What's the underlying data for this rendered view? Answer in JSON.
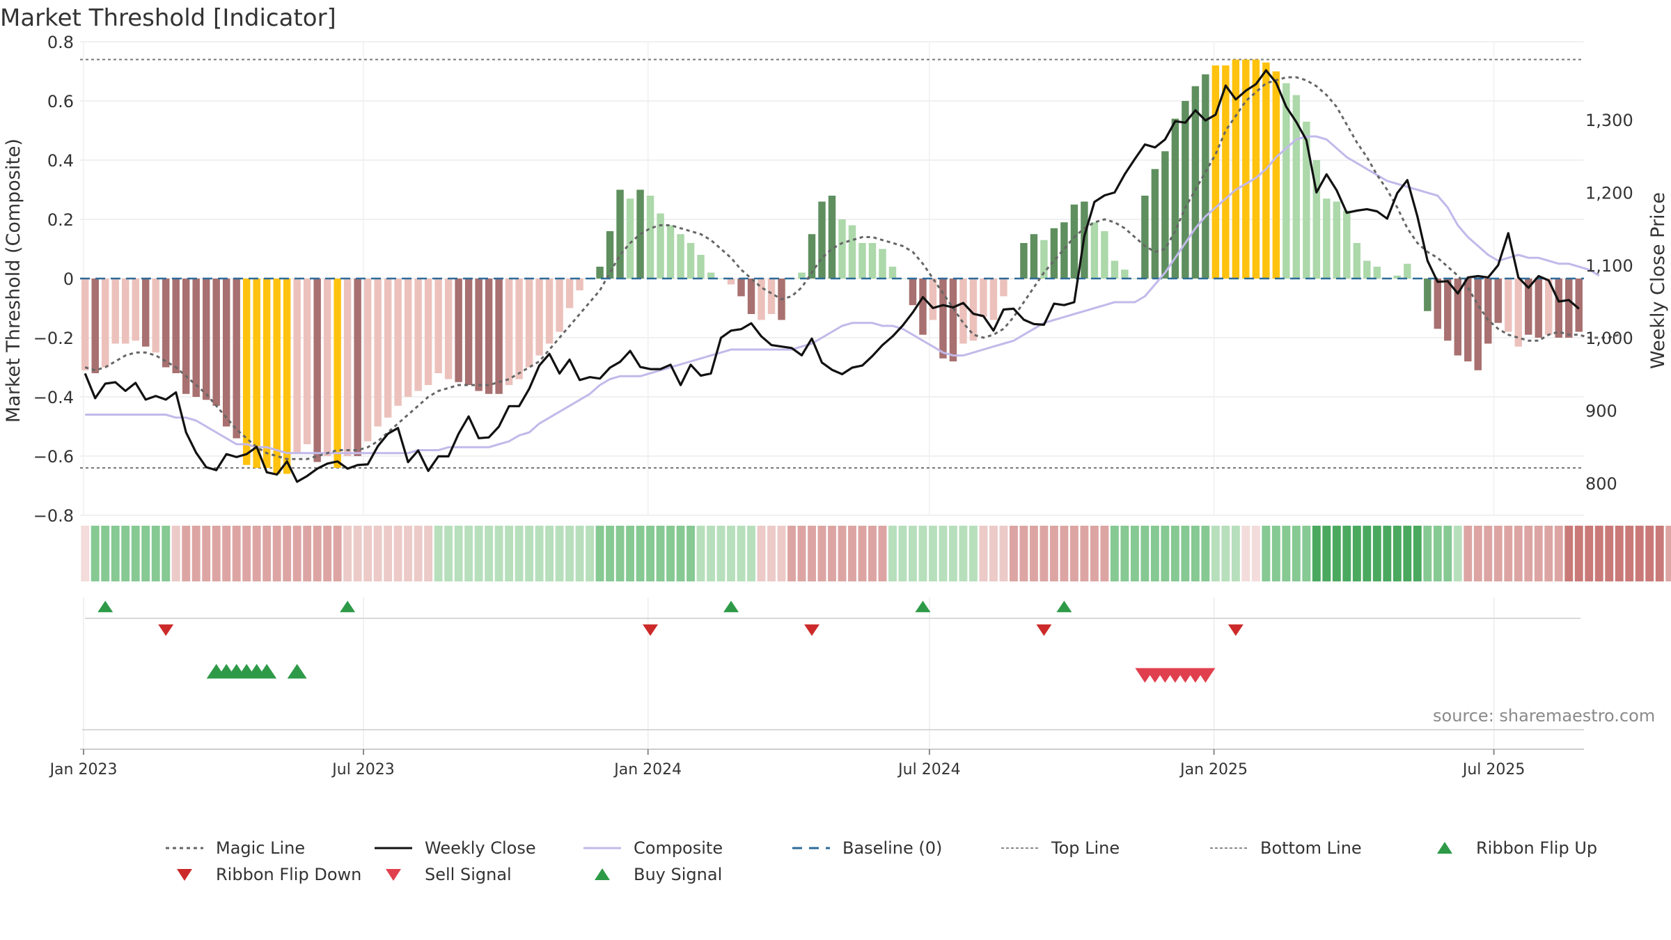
{
  "title": "Market Threshold [Indicator]",
  "source": "source: sharemaestro.com",
  "colors": {
    "magic": "#666666",
    "close": "#111111",
    "composite": "#c2b9ea",
    "baseline": "#2d6b99",
    "threshold": "#777777",
    "bull_strong": "#5f8f5f",
    "bull_weak": "#acd8aa",
    "bear_strong": "#a87070",
    "bear_weak": "#ecc1bc",
    "extreme": "#ffc20e",
    "flip_up": "#2e9a48",
    "flip_down": "#cc2a2a",
    "sell": "#e0404d",
    "buy": "#2e9a48"
  },
  "legend": [
    {
      "label": "Magic Line",
      "sym": "dotted",
      "color": "#666666"
    },
    {
      "label": "Weekly Close",
      "sym": "solid",
      "color": "#111111"
    },
    {
      "label": "Composite",
      "sym": "solid",
      "color": "#c2b9ea"
    },
    {
      "label": "Baseline (0)",
      "sym": "dashed",
      "color": "#2d6b99"
    },
    {
      "label": "Top Line",
      "sym": "dotted-thin",
      "color": "#888888"
    },
    {
      "label": "Bottom Line",
      "sym": "dotted-thin",
      "color": "#888888"
    },
    {
      "label": "Ribbon Flip Up",
      "sym": "tri-up",
      "color": "#2e9a48"
    },
    {
      "label": "Ribbon Flip Down",
      "sym": "tri-down",
      "color": "#cc2a2a"
    },
    {
      "label": "Sell Signal",
      "sym": "tri-down",
      "color": "#e0404d"
    },
    {
      "label": "Buy Signal",
      "sym": "tri-up",
      "color": "#2e9a48"
    }
  ],
  "chart_data": {
    "type": "bar",
    "ylabel_left": "Market Threshold (Composite)",
    "ylabel_right": "Weekly Close Price",
    "ylim_left": [
      -0.8,
      0.8
    ],
    "yticks_left": [
      "0.8",
      "0.6",
      "0.4",
      "0.2",
      "0",
      "−0.2",
      "−0.4",
      "−0.6",
      "−0.8"
    ],
    "ylim_right": [
      800,
      1300
    ],
    "yticks_right": [
      "1,300",
      "1,200",
      "1,100",
      "1,000",
      "900",
      "800"
    ],
    "xticks": [
      "Jan 2023",
      "Jul 2023",
      "Jan 2024",
      "Jul 2024",
      "Jan 2025",
      "Jul 2025"
    ],
    "x_start": "2023-01-02",
    "x_end": "2025-08-25",
    "grid": true,
    "top_line": 0.74,
    "bottom_line": -0.64,
    "baseline": 0,
    "bars": [
      -0.31,
      -0.32,
      -0.3,
      -0.22,
      -0.22,
      -0.21,
      -0.23,
      -0.25,
      -0.3,
      -0.32,
      -0.39,
      -0.4,
      -0.41,
      -0.43,
      -0.5,
      -0.54,
      -0.63,
      -0.64,
      -0.64,
      -0.66,
      -0.66,
      -0.59,
      -0.56,
      -0.62,
      -0.6,
      -0.64,
      -0.6,
      -0.6,
      -0.55,
      -0.5,
      -0.47,
      -0.43,
      -0.4,
      -0.38,
      -0.36,
      -0.32,
      -0.34,
      -0.35,
      -0.36,
      -0.38,
      -0.39,
      -0.39,
      -0.36,
      -0.34,
      -0.3,
      -0.26,
      -0.22,
      -0.18,
      -0.1,
      -0.04,
      0,
      0.04,
      0.16,
      0.3,
      0.27,
      0.3,
      0.28,
      0.22,
      0.18,
      0.15,
      0.12,
      0.08,
      0.02,
      0,
      -0.02,
      -0.06,
      -0.12,
      -0.14,
      -0.12,
      -0.14,
      0,
      0.02,
      0.15,
      0.26,
      0.28,
      0.2,
      0.18,
      0.12,
      0.12,
      0.1,
      0.04,
      0,
      -0.09,
      -0.19,
      -0.14,
      -0.27,
      -0.28,
      -0.22,
      -0.21,
      -0.13,
      -0.14,
      -0.06,
      0,
      0.12,
      0.15,
      0.13,
      0.17,
      0.19,
      0.25,
      0.26,
      0.19,
      0.16,
      0.06,
      0.03,
      0,
      0.28,
      0.37,
      0.43,
      0.54,
      0.6,
      0.65,
      0.69,
      0.72,
      0.72,
      0.74,
      0.74,
      0.74,
      0.73,
      0.7,
      0.66,
      0.62,
      0.53,
      0.4,
      0.27,
      0.26,
      0.23,
      0.12,
      0.06,
      0.04,
      0,
      0.01,
      0.05,
      0,
      -0.11,
      -0.17,
      -0.21,
      -0.26,
      -0.28,
      -0.31,
      -0.22,
      -0.15,
      -0.18,
      -0.23,
      -0.19,
      -0.2,
      -0.19,
      -0.2,
      -0.2,
      -0.18
    ],
    "bar_styles": [
      "bw",
      "bs",
      "bw",
      "bw",
      "bw",
      "bw",
      "bs",
      "bw",
      "bs",
      "bs",
      "bs",
      "bs",
      "bs",
      "bs",
      "bs",
      "bs",
      "ex",
      "ex",
      "ex",
      "ex",
      "ex",
      "bw",
      "bw",
      "bs",
      "bw",
      "ex",
      "bw",
      "bs",
      "bw",
      "bw",
      "bw",
      "bw",
      "bw",
      "bw",
      "bw",
      "bw",
      "bw",
      "bs",
      "bs",
      "bs",
      "bs",
      "bs",
      "bw",
      "bw",
      "bw",
      "bw",
      "bw",
      "bw",
      "bw",
      "bw",
      "bw",
      "us",
      "us",
      "us",
      "uw",
      "us",
      "uw",
      "uw",
      "uw",
      "uw",
      "uw",
      "uw",
      "uw",
      "uw",
      "bw",
      "bs",
      "bs",
      "bw",
      "bw",
      "bs",
      "uw",
      "uw",
      "us",
      "us",
      "us",
      "uw",
      "uw",
      "uw",
      "uw",
      "uw",
      "uw",
      "uw",
      "bs",
      "bs",
      "bw",
      "bs",
      "bs",
      "bw",
      "bw",
      "bw",
      "bw",
      "bw",
      "bw",
      "us",
      "us",
      "uw",
      "us",
      "us",
      "us",
      "us",
      "uw",
      "uw",
      "uw",
      "uw",
      "uw",
      "us",
      "us",
      "us",
      "us",
      "us",
      "us",
      "us",
      "ex",
      "ex",
      "ex",
      "ex",
      "ex",
      "ex",
      "ex",
      "uw",
      "uw",
      "uw",
      "uw",
      "uw",
      "uw",
      "uw",
      "uw",
      "uw",
      "uw",
      "uw",
      "uw",
      "uw",
      "uw",
      "us",
      "bs",
      "bs",
      "bs",
      "bs",
      "bs",
      "bs",
      "bs",
      "bw",
      "bw",
      "bs",
      "bs",
      "bw",
      "bs",
      "bs",
      "bs",
      "bs",
      "bw"
    ],
    "composite": [
      -0.46,
      -0.46,
      -0.46,
      -0.46,
      -0.46,
      -0.46,
      -0.46,
      -0.46,
      -0.46,
      -0.47,
      -0.47,
      -0.48,
      -0.5,
      -0.52,
      -0.54,
      -0.56,
      -0.56,
      -0.57,
      -0.57,
      -0.58,
      -0.59,
      -0.59,
      -0.59,
      -0.59,
      -0.59,
      -0.59,
      -0.59,
      -0.59,
      -0.59,
      -0.59,
      -0.59,
      -0.59,
      -0.59,
      -0.58,
      -0.58,
      -0.58,
      -0.57,
      -0.57,
      -0.57,
      -0.57,
      -0.57,
      -0.56,
      -0.55,
      -0.53,
      -0.52,
      -0.49,
      -0.47,
      -0.45,
      -0.43,
      -0.41,
      -0.39,
      -0.36,
      -0.34,
      -0.33,
      -0.33,
      -0.33,
      -0.32,
      -0.31,
      -0.3,
      -0.29,
      -0.28,
      -0.27,
      -0.26,
      -0.25,
      -0.24,
      -0.24,
      -0.24,
      -0.24,
      -0.24,
      -0.24,
      -0.24,
      -0.23,
      -0.22,
      -0.2,
      -0.18,
      -0.16,
      -0.15,
      -0.15,
      -0.15,
      -0.16,
      -0.16,
      -0.17,
      -0.19,
      -0.21,
      -0.23,
      -0.25,
      -0.26,
      -0.26,
      -0.25,
      -0.24,
      -0.23,
      -0.22,
      -0.21,
      -0.19,
      -0.17,
      -0.15,
      -0.14,
      -0.13,
      -0.12,
      -0.11,
      -0.1,
      -0.09,
      -0.08,
      -0.08,
      -0.08,
      -0.06,
      -0.02,
      0.02,
      0.07,
      0.12,
      0.17,
      0.21,
      0.24,
      0.27,
      0.3,
      0.32,
      0.34,
      0.37,
      0.41,
      0.44,
      0.47,
      0.48,
      0.48,
      0.47,
      0.44,
      0.41,
      0.39,
      0.37,
      0.35,
      0.33,
      0.32,
      0.31,
      0.3,
      0.29,
      0.28,
      0.24,
      0.18,
      0.14,
      0.11,
      0.08,
      0.06,
      0.07,
      0.08,
      0.07,
      0.07,
      0.06,
      0.05,
      0.05,
      0.04,
      0.03,
      0.01
    ],
    "magic": [
      -0.3,
      -0.31,
      -0.3,
      -0.28,
      -0.26,
      -0.25,
      -0.25,
      -0.26,
      -0.28,
      -0.3,
      -0.33,
      -0.36,
      -0.39,
      -0.43,
      -0.47,
      -0.51,
      -0.54,
      -0.57,
      -0.59,
      -0.6,
      -0.61,
      -0.61,
      -0.61,
      -0.6,
      -0.59,
      -0.58,
      -0.58,
      -0.58,
      -0.57,
      -0.55,
      -0.52,
      -0.49,
      -0.46,
      -0.43,
      -0.4,
      -0.38,
      -0.37,
      -0.36,
      -0.36,
      -0.36,
      -0.36,
      -0.35,
      -0.34,
      -0.32,
      -0.3,
      -0.28,
      -0.24,
      -0.2,
      -0.16,
      -0.12,
      -0.08,
      -0.04,
      0.02,
      0.08,
      0.12,
      0.15,
      0.17,
      0.18,
      0.18,
      0.17,
      0.16,
      0.15,
      0.13,
      0.1,
      0.07,
      0.03,
      0,
      -0.03,
      -0.05,
      -0.07,
      -0.06,
      -0.03,
      0.02,
      0.07,
      0.1,
      0.12,
      0.13,
      0.14,
      0.14,
      0.13,
      0.12,
      0.11,
      0.09,
      0.05,
      0,
      -0.05,
      -0.1,
      -0.15,
      -0.19,
      -0.2,
      -0.19,
      -0.17,
      -0.13,
      -0.08,
      -0.03,
      0.02,
      0.06,
      0.1,
      0.14,
      0.17,
      0.19,
      0.2,
      0.19,
      0.17,
      0.14,
      0.11,
      0.09,
      0.1,
      0.16,
      0.24,
      0.3,
      0.36,
      0.42,
      0.5,
      0.55,
      0.6,
      0.63,
      0.66,
      0.67,
      0.68,
      0.68,
      0.67,
      0.65,
      0.62,
      0.58,
      0.52,
      0.46,
      0.41,
      0.35,
      0.3,
      0.24,
      0.17,
      0.12,
      0.09,
      0.07,
      0.04,
      0.01,
      -0.03,
      -0.09,
      -0.14,
      -0.17,
      -0.19,
      -0.2,
      -0.21,
      -0.21,
      -0.19,
      -0.18,
      -0.19,
      -0.19,
      -0.2,
      -0.2,
      -0.2,
      -0.19
    ],
    "weekly_close": [
      951,
      917,
      937,
      939,
      927,
      938,
      915,
      920,
      915,
      925,
      870,
      842,
      822,
      818,
      840,
      836,
      840,
      850,
      815,
      812,
      830,
      802,
      810,
      820,
      827,
      830,
      820,
      825,
      826,
      851,
      868,
      876,
      829,
      845,
      817,
      837,
      837,
      868,
      892,
      862,
      863,
      878,
      906,
      906,
      930,
      962,
      978,
      951,
      970,
      942,
      946,
      944,
      959,
      967,
      982,
      960,
      957,
      957,
      963,
      935,
      963,
      948,
      951,
      1000,
      1010,
      1012,
      1020,
      1002,
      990,
      988,
      986,
      976,
      999,
      966,
      956,
      950,
      959,
      962,
      975,
      990,
      1002,
      1017,
      1035,
      1056,
      1041,
      1045,
      1042,
      1048,
      1033,
      1030,
      1010,
      1039,
      1040,
      1025,
      1019,
      1018,
      1047,
      1045,
      1049,
      1140,
      1187,
      1196,
      1200,
      1225,
      1246,
      1266,
      1262,
      1273,
      1298,
      1296,
      1313,
      1299,
      1307,
      1347,
      1328,
      1340,
      1349,
      1368,
      1351,
      1318,
      1297,
      1272,
      1200,
      1225,
      1203,
      1172,
      1175,
      1177,
      1174,
      1164,
      1199,
      1217,
      1167,
      1106,
      1077,
      1078,
      1061,
      1083,
      1085,
      1083,
      1100,
      1144,
      1083,
      1069,
      1085,
      1079,
      1050,
      1052,
      1040
    ],
    "ribbon": [
      0,
      2,
      2,
      2,
      2,
      2,
      2,
      2,
      2,
      -1,
      -2,
      -2,
      -2,
      -2,
      -2,
      -2,
      -2,
      -2,
      -2,
      -2,
      -2,
      -2,
      -2,
      -2,
      -2,
      -2,
      -1,
      -1,
      -1,
      -1,
      -1,
      -1,
      -1,
      -1,
      -1,
      1,
      1,
      1,
      1,
      1,
      1,
      1,
      1,
      1,
      1,
      1,
      1,
      1,
      1,
      1,
      1,
      2,
      2,
      2,
      2,
      2,
      2,
      2,
      2,
      2,
      2,
      1,
      1,
      1,
      1,
      1,
      1,
      -1,
      -1,
      -1,
      -2,
      -2,
      -2,
      -2,
      -2,
      -2,
      -2,
      -2,
      -2,
      -2,
      1,
      1,
      1,
      1,
      1,
      1,
      1,
      1,
      1,
      -1,
      -1,
      -1,
      -2,
      -2,
      -2,
      -2,
      -2,
      -2,
      -2,
      -2,
      -2,
      -2,
      2,
      2,
      2,
      2,
      2,
      2,
      2,
      2,
      2,
      2,
      1,
      1,
      1,
      0,
      0,
      2,
      2,
      2,
      2,
      2,
      3,
      3,
      3,
      3,
      3,
      3,
      3,
      3,
      3,
      3,
      3,
      2,
      2,
      2,
      1,
      -2,
      -2,
      -2,
      -2,
      -2,
      -2,
      -2,
      -2,
      -2,
      -2,
      -3,
      -3,
      -3,
      -3,
      -3,
      -3,
      -3,
      -3,
      -3,
      -3,
      -2,
      -2,
      -2,
      -2,
      -2,
      -2,
      -1
    ],
    "ribbon_flip_up": [
      2,
      26,
      64,
      83,
      97
    ],
    "ribbon_flip_down": [
      8,
      56,
      72,
      95,
      114
    ],
    "buy_signals": [
      13,
      14,
      15,
      16,
      17,
      18,
      21
    ],
    "sell_signals": [
      105,
      106,
      107,
      108,
      109,
      110,
      111
    ]
  }
}
